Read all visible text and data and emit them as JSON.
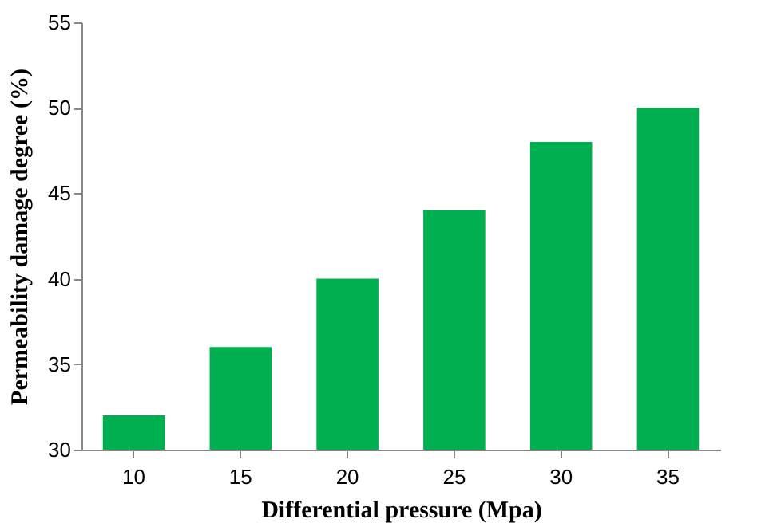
{
  "chart_data": {
    "type": "bar",
    "xlabel": "Differential pressure (Mpa)",
    "ylabel": "Permeability damage degree (%)",
    "categories": [
      "10",
      "15",
      "20",
      "25",
      "30",
      "35"
    ],
    "values": [
      32,
      36,
      40,
      44,
      48,
      50
    ],
    "color": "#00b050",
    "ylim": [
      30,
      55
    ],
    "yticks": [
      30,
      35,
      40,
      45,
      50,
      55
    ],
    "grid": false
  }
}
